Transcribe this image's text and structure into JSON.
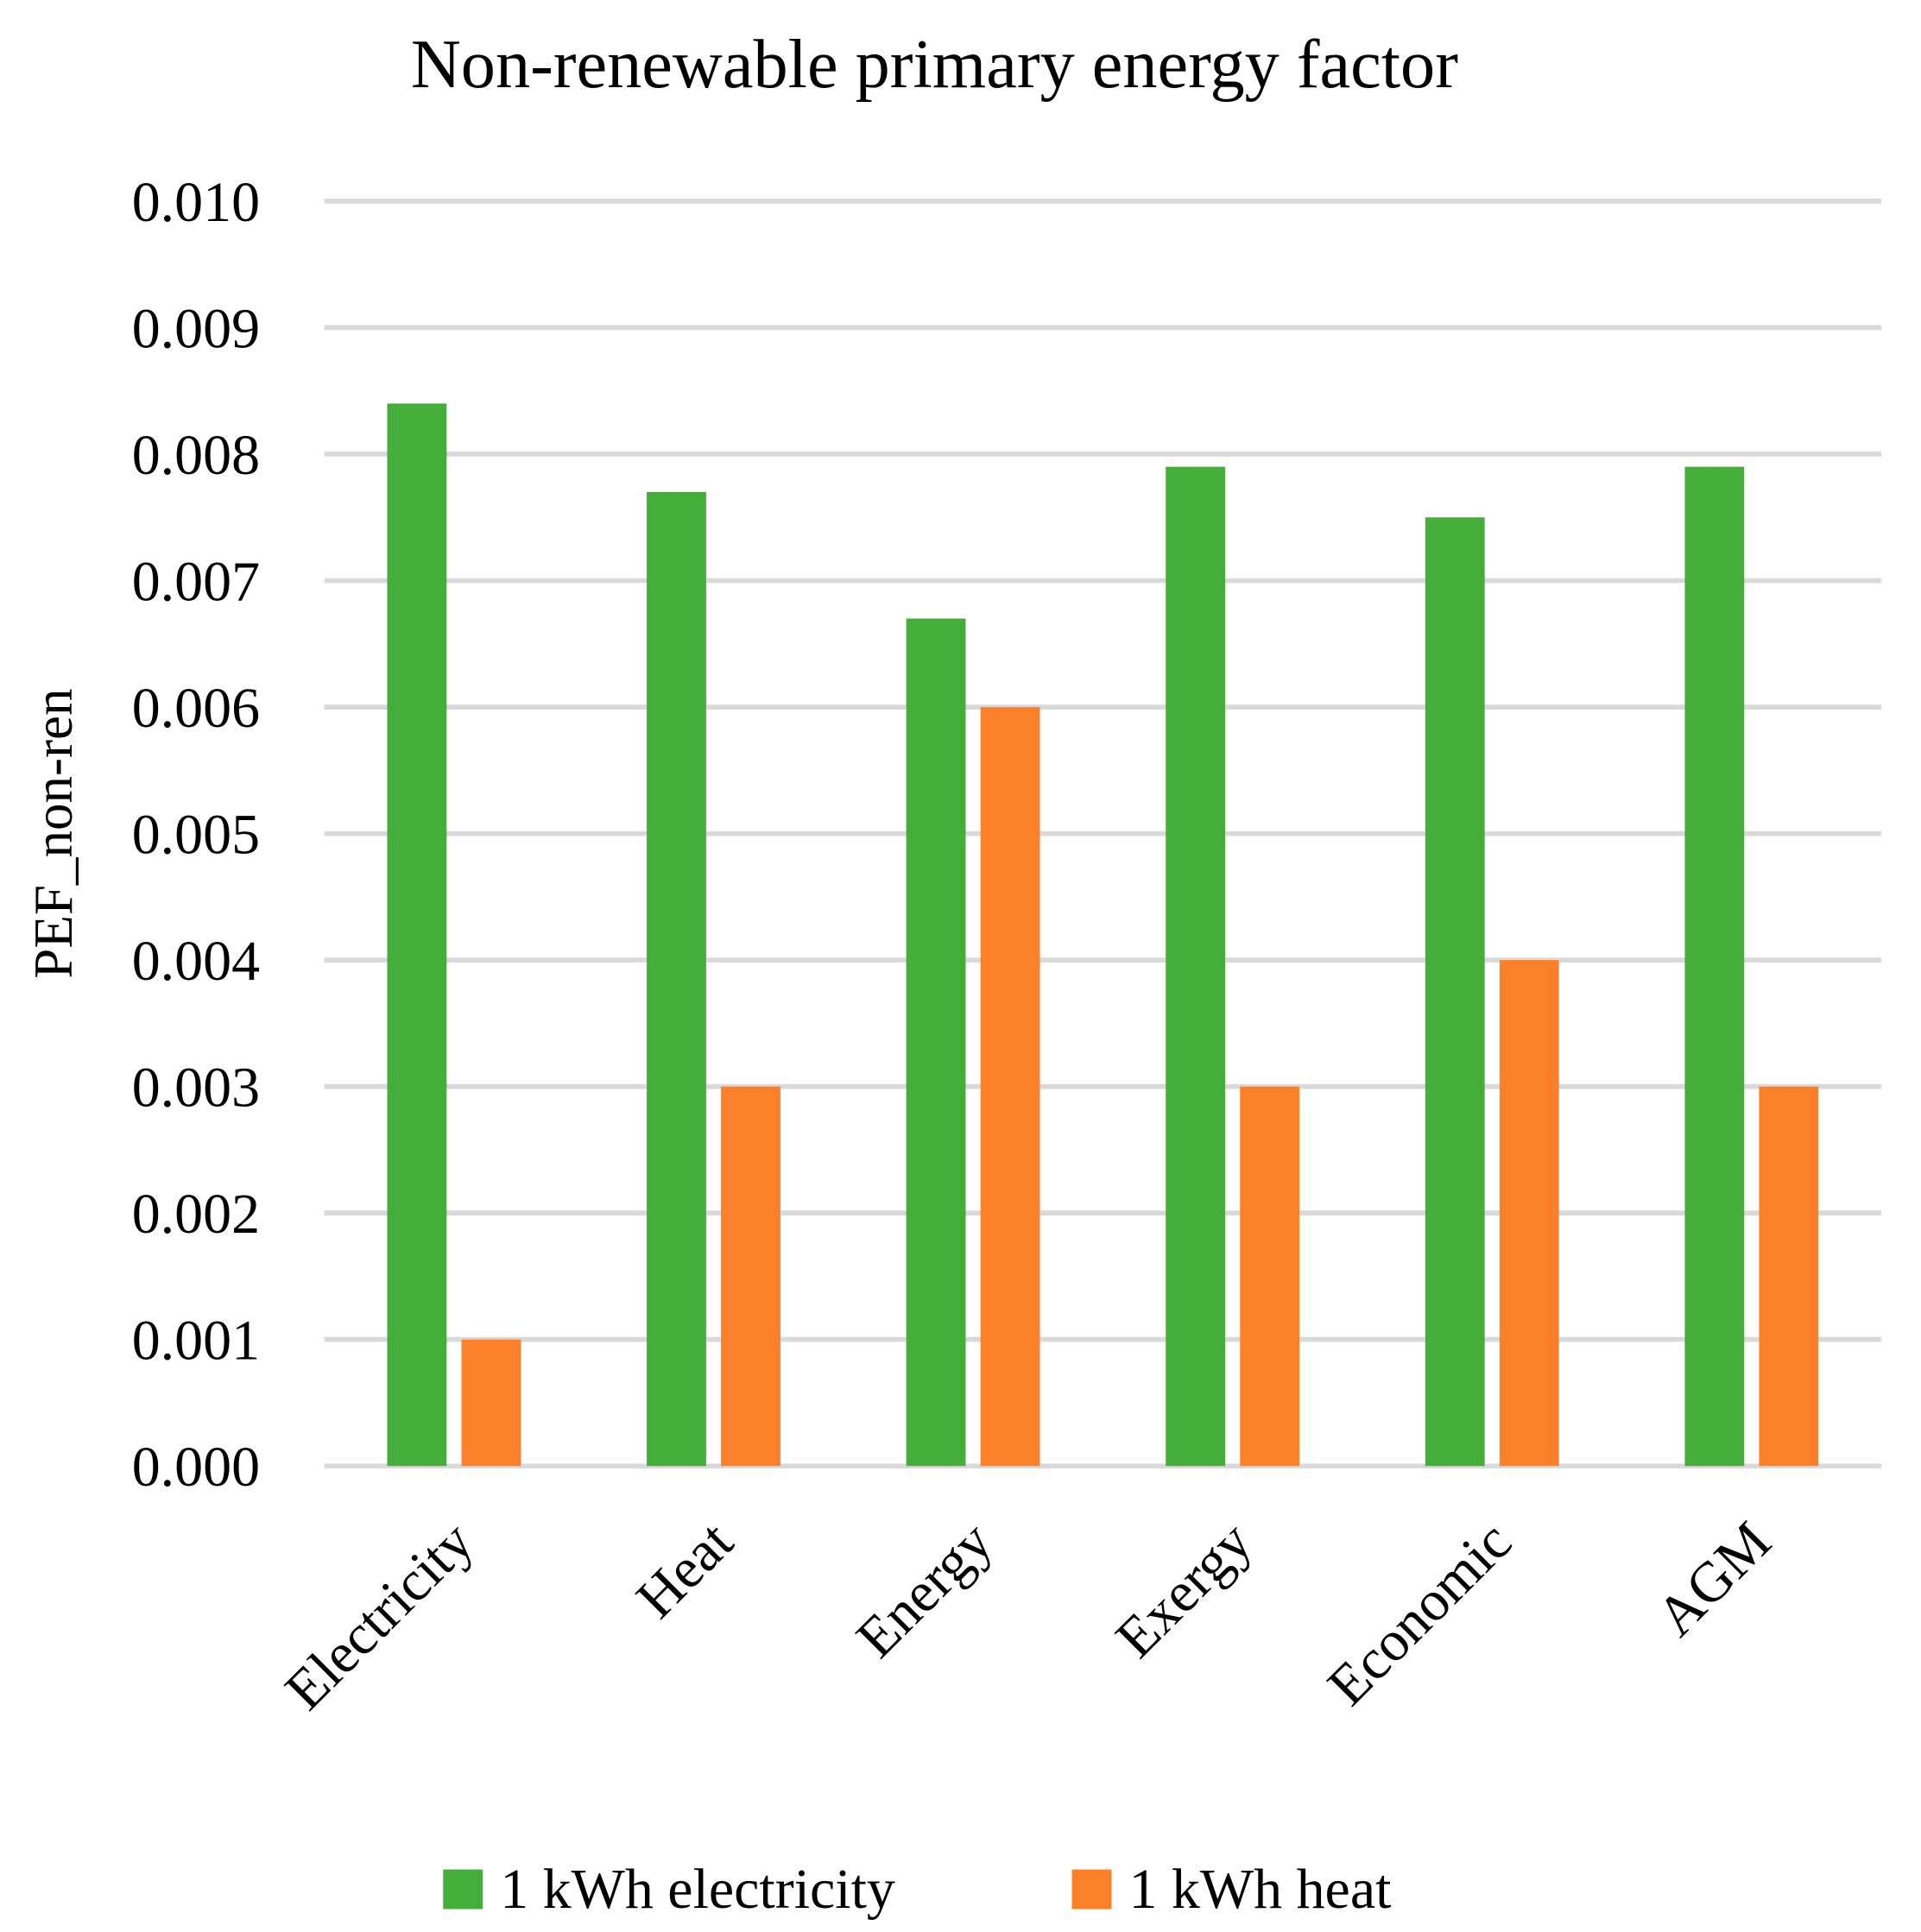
{
  "chart_data": {
    "type": "bar",
    "title": "Non-renewable primary energy factor",
    "xlabel": "",
    "ylabel": "PEF_non-ren",
    "ylim": [
      0,
      0.01
    ],
    "yticks": [
      "0.000",
      "0.001",
      "0.002",
      "0.003",
      "0.004",
      "0.005",
      "0.006",
      "0.007",
      "0.008",
      "0.009",
      "0.010"
    ],
    "grid": true,
    "legend_position": "bottom",
    "categories": [
      "Electricity",
      "Heat",
      "Energy",
      "Exergy",
      "Economic",
      "AGM"
    ],
    "series": [
      {
        "name": "1 kWh electricity",
        "color": "#45AE3B",
        "values": [
          0.0084,
          0.0077,
          0.0067,
          0.0079,
          0.0075,
          0.0079
        ]
      },
      {
        "name": "1 kWh heat",
        "color": "#FC7F2A",
        "values": [
          0.001,
          0.003,
          0.006,
          0.003,
          0.004,
          0.003
        ]
      }
    ]
  }
}
